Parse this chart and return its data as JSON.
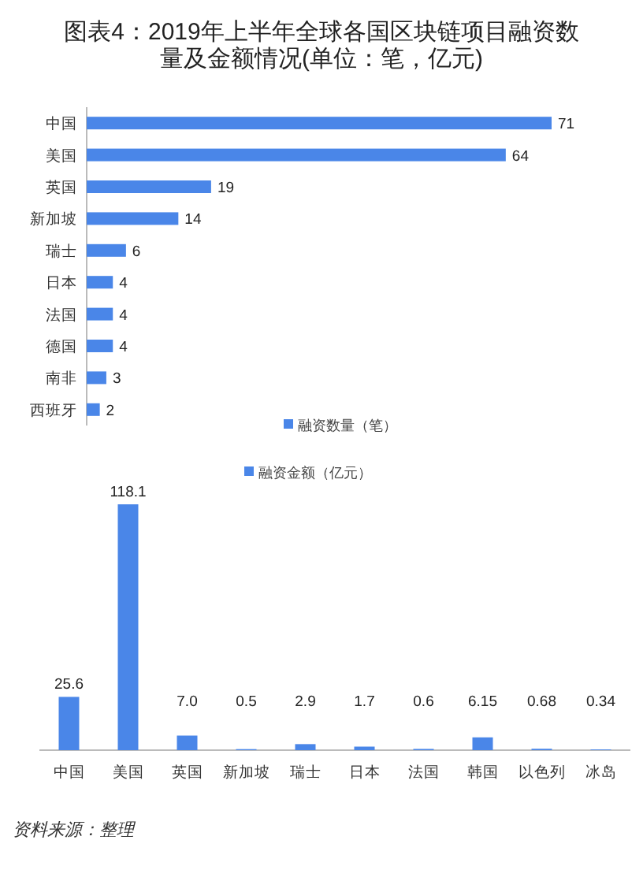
{
  "chart_data": [
    {
      "type": "bar",
      "orientation": "horizontal",
      "title": "图表4：2019年上半年全球各国区块链项目融资数量及金额情况(单位：笔，亿元)",
      "categories": [
        "中国",
        "美国",
        "英国",
        "新加坡",
        "瑞士",
        "日本",
        "法国",
        "德国",
        "南非",
        "西班牙"
      ],
      "series": [
        {
          "name": "融资数量（笔）",
          "color": "#4a86e8",
          "values": [
            71,
            64,
            19,
            14,
            6,
            4,
            4,
            4,
            3,
            2
          ]
        }
      ],
      "data_labels": true,
      "legend": "bottom"
    },
    {
      "type": "bar",
      "categories": [
        "中国",
        "美国",
        "英国",
        "新加坡",
        "瑞士",
        "日本",
        "法国",
        "韩国",
        "以色列",
        "冰岛"
      ],
      "series": [
        {
          "name": "融资金额（亿元）",
          "color": "#4a86e8",
          "values": [
            25.6,
            118.1,
            7.0,
            0.5,
            2.9,
            1.7,
            0.6,
            6.15,
            0.68,
            0.34
          ],
          "value_labels": [
            "25.6",
            "118.1",
            "7.0",
            "0.5",
            "2.9",
            "1.7",
            "0.6",
            "6.15",
            "0.68",
            "0.34"
          ]
        }
      ],
      "legend": "top",
      "annotations": [
        "资料来源：整理"
      ]
    }
  ]
}
